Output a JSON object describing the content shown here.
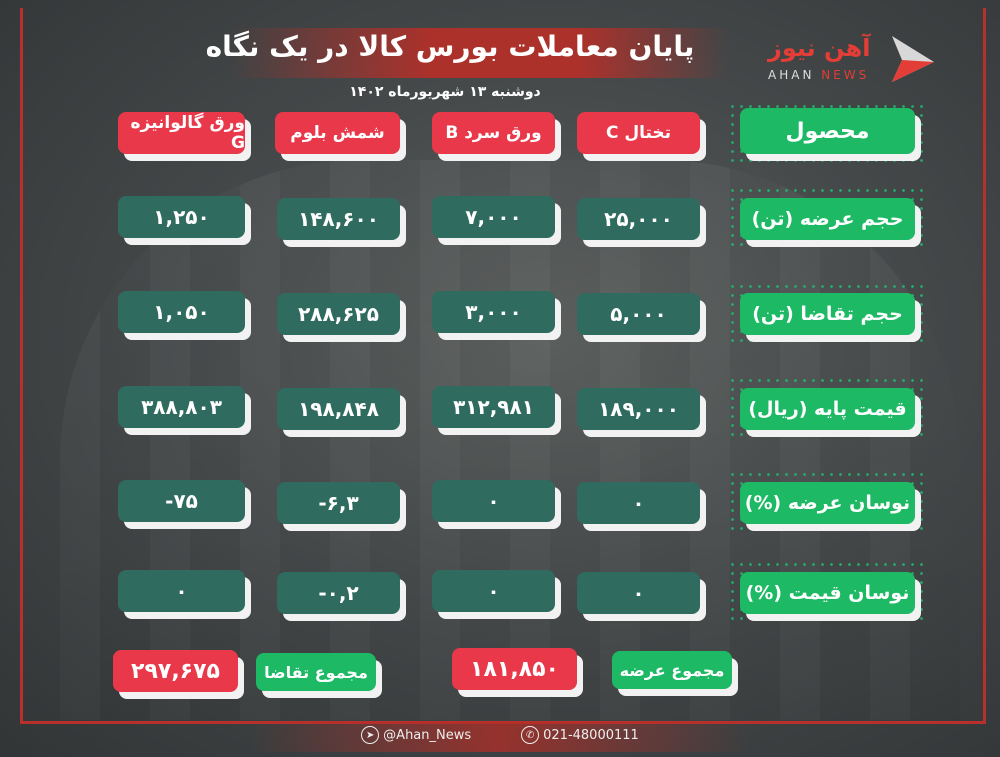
{
  "header": {
    "title": "پایان معاملات بورس کالا در یک نگاه",
    "date": "دوشنبه ۱۳ شهریورماه ۱۴۰۲",
    "logo_fa": "آهن نیوز",
    "logo_en_1": "AHAN",
    "logo_en_2": "NEWS"
  },
  "table": {
    "corner_label": "محصول",
    "products": [
      "تختال C",
      "ورق سرد B",
      "شمش بلوم",
      "ورق گالوانیزه G"
    ],
    "rows": [
      {
        "label": "حجم عرضه (تن)",
        "values": [
          "۲۵,۰۰۰",
          "۷,۰۰۰",
          "۱۴۸,۶۰۰",
          "۱,۲۵۰"
        ]
      },
      {
        "label": "حجم تقاضا (تن)",
        "values": [
          "۵,۰۰۰",
          "۳,۰۰۰",
          "۲۸۸,۶۲۵",
          "۱,۰۵۰"
        ]
      },
      {
        "label": "قیمت پایه (ریال)",
        "values": [
          "۱۸۹,۰۰۰",
          "۳۱۲,۹۸۱",
          "۱۹۸,۸۴۸",
          "۳۸۸,۸۰۳"
        ]
      },
      {
        "label": "نوسان عرضه (%)",
        "values": [
          "۰",
          "۰",
          "-۶,۳",
          "-۷۵"
        ]
      },
      {
        "label": "نوسان قیمت (%)",
        "values": [
          "۰",
          "۰",
          "-۰,۲",
          "۰"
        ]
      }
    ]
  },
  "totals": {
    "supply_label": "مجموع عرضه",
    "supply_value": "۱۸۱,۸۵۰",
    "demand_label": "مجموع تقاضا",
    "demand_value": "۲۹۷,۶۷۵"
  },
  "footer": {
    "telegram": "@Ahan_News",
    "phone": "021-48000111"
  },
  "colors": {
    "label_green": "#1db965",
    "product_red": "#e8384a",
    "value_teal": "#2f6b5f",
    "frame_red": "#b8302c"
  }
}
